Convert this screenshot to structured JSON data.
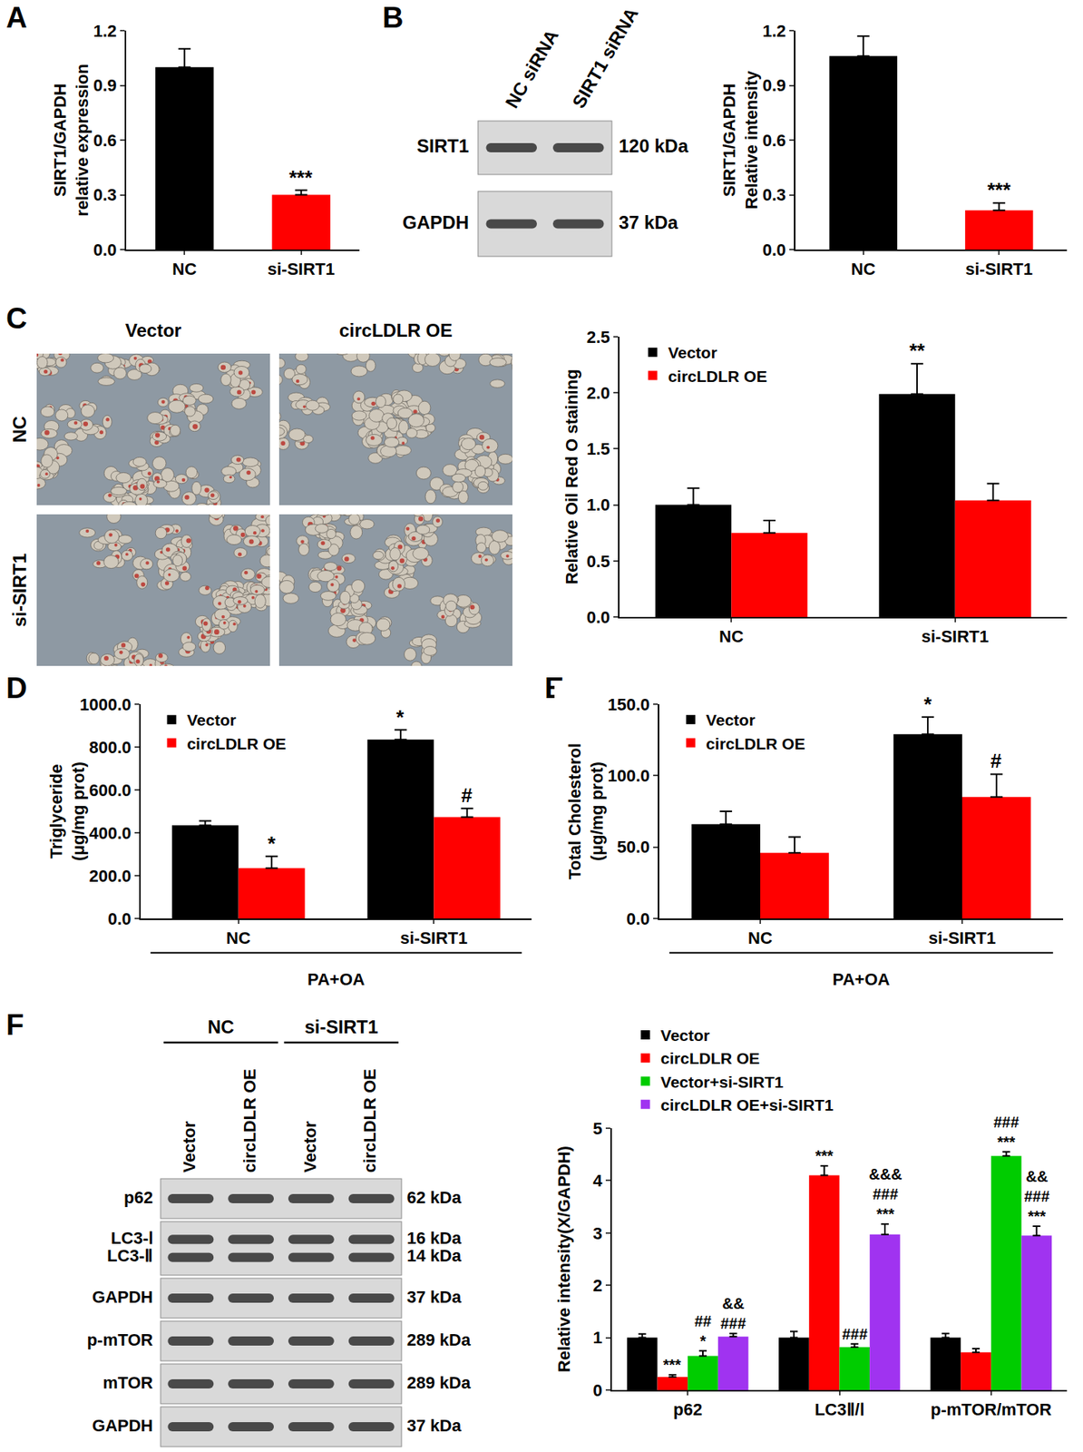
{
  "panel_letters": [
    "A",
    "B",
    "C",
    "D",
    "E",
    "F"
  ],
  "chart_data": [
    {
      "type": "bar",
      "categories": [
        "NC",
        "si-SIRT1"
      ],
      "values": [
        1.0,
        0.3
      ],
      "errors": [
        0.1,
        0.025
      ],
      "colors": [
        "#000000",
        "#ff0000"
      ],
      "ylabel": "SIRT1/GAPDH\nrelative expression",
      "ylim": [
        0,
        1.2
      ],
      "yticks": [
        {
          "value": 0,
          "label": "0.0"
        },
        0.3,
        0.6,
        0.9,
        1.2
      ],
      "grid": false,
      "annotations": [
        {
          "category": "si-SIRT1",
          "text": "***"
        }
      ]
    },
    {
      "type": "bar",
      "categories": [
        "NC",
        "si-SIRT1"
      ],
      "values": [
        1.06,
        0.215
      ],
      "errors": [
        0.11,
        0.04
      ],
      "colors": [
        "#000000",
        "#ff0000"
      ],
      "ylabel": "SIRT1/GAPDH\nRelative intensity",
      "ylim": [
        0,
        1.2
      ],
      "yticks": [
        {
          "value": 0,
          "label": "0.0"
        },
        0.3,
        0.6,
        0.9,
        1.2
      ],
      "grid": false,
      "annotations": [
        {
          "category": "si-SIRT1",
          "text": "***"
        }
      ]
    },
    {
      "type": "bar",
      "categories": [
        "NC",
        "si-SIRT1"
      ],
      "series": [
        {
          "name": "Vector",
          "color": "#000000",
          "values": [
            1.0,
            1.99
          ],
          "errors": [
            0.15,
            0.27
          ]
        },
        {
          "name": "circLDLR OE",
          "color": "#ff0000",
          "values": [
            0.75,
            1.04
          ],
          "errors": [
            0.11,
            0.15
          ]
        }
      ],
      "ylabel": "Relative Oil Red O staining",
      "ylim": [
        0,
        2.5
      ],
      "yticks": [
        {
          "value": 0,
          "label": "0.0"
        },
        0.5,
        {
          "value": 1,
          "label": "1.0"
        },
        1.5,
        {
          "value": 2,
          "label": "2.0"
        },
        2.5
      ],
      "grid": false,
      "legend": "top left",
      "annotations": [
        {
          "category": "si-SIRT1",
          "series": "Vector",
          "text": "**"
        }
      ]
    },
    {
      "type": "bar",
      "categories": [
        "NC",
        "si-SIRT1"
      ],
      "series": [
        {
          "name": "Vector",
          "color": "#000000",
          "values": [
            435,
            835
          ],
          "errors": [
            20,
            45
          ]
        },
        {
          "name": "circLDLR OE",
          "color": "#ff0000",
          "values": [
            235,
            473
          ],
          "errors": [
            55,
            40
          ]
        }
      ],
      "ylabel": "Triglyceride\n(μg/mg prot)",
      "xlabel": "PA+OA",
      "ylim": [
        0,
        1000
      ],
      "yticks": [
        {
          "value": 0,
          "label": "0.0"
        },
        {
          "value": 200,
          "label": "200.0"
        },
        {
          "value": 400,
          "label": "400.0"
        },
        {
          "value": 600,
          "label": "600.0"
        },
        {
          "value": 800,
          "label": "800.0"
        },
        {
          "value": 1000,
          "label": "1000.0"
        }
      ],
      "grid": false,
      "legend": "top left",
      "annotations": [
        {
          "category": "NC",
          "series": "circLDLR OE",
          "text": "*"
        },
        {
          "category": "si-SIRT1",
          "series": "Vector",
          "text": "*"
        },
        {
          "category": "si-SIRT1",
          "series": "circLDLR OE",
          "text": "#"
        }
      ]
    },
    {
      "type": "bar",
      "categories": [
        "NC",
        "si-SIRT1"
      ],
      "series": [
        {
          "name": "Vector",
          "color": "#000000",
          "values": [
            66,
            129
          ],
          "errors": [
            9,
            12
          ]
        },
        {
          "name": "circLDLR OE",
          "color": "#ff0000",
          "values": [
            46,
            85
          ],
          "errors": [
            11,
            16
          ]
        }
      ],
      "ylabel": "Total Cholesterol\n(μg/mg prot)",
      "xlabel": "PA+OA",
      "ylim": [
        0,
        150
      ],
      "yticks": [
        {
          "value": 0,
          "label": "0.0"
        },
        {
          "value": 50,
          "label": "50.0"
        },
        {
          "value": 100,
          "label": "100.0"
        },
        {
          "value": 150,
          "label": "150.0"
        }
      ],
      "grid": false,
      "legend": "top left",
      "annotations": [
        {
          "category": "si-SIRT1",
          "series": "Vector",
          "text": "*"
        },
        {
          "category": "si-SIRT1",
          "series": "circLDLR OE",
          "text": "#"
        }
      ]
    },
    {
      "type": "bar",
      "categories": [
        "p62",
        "LC3Ⅱ/Ⅰ",
        "p-mTOR/mTOR"
      ],
      "series": [
        {
          "name": "Vector",
          "color": "#000000",
          "values": [
            1.0,
            1.0,
            1.0
          ],
          "errors": [
            0.07,
            0.12,
            0.08
          ]
        },
        {
          "name": "circLDLR OE",
          "color": "#ff0000",
          "values": [
            0.25,
            4.1,
            0.72
          ],
          "errors": [
            0.04,
            0.18,
            0.07
          ]
        },
        {
          "name": "Vector+si-SIRT1",
          "color": "#00cc00",
          "values": [
            0.65,
            0.82,
            4.47
          ],
          "errors": [
            0.1,
            0.06,
            0.08
          ]
        },
        {
          "name": "circLDLR OE+si-SIRT1",
          "color": "#a033f0",
          "values": [
            1.02,
            2.97,
            2.95
          ],
          "errors": [
            0.06,
            0.2,
            0.18
          ]
        }
      ],
      "ylabel": "Relative intensity(X/GAPDH)",
      "ylim": [
        0,
        5
      ],
      "yticks": [
        0,
        1,
        2,
        3,
        4,
        5
      ],
      "grid": false,
      "legend": "outside top left",
      "annotations": [
        {
          "category": "p62",
          "series": "circLDLR OE",
          "text": "***"
        },
        {
          "category": "p62",
          "series": "Vector+si-SIRT1",
          "text": "##\n*"
        },
        {
          "category": "p62",
          "series": "circLDLR OE+si-SIRT1",
          "text": "&&\n###"
        },
        {
          "category": "LC3Ⅱ/Ⅰ",
          "series": "circLDLR OE",
          "text": "***"
        },
        {
          "category": "LC3Ⅱ/Ⅰ",
          "series": "Vector+si-SIRT1",
          "text": "###"
        },
        {
          "category": "LC3Ⅱ/Ⅰ",
          "series": "circLDLR OE+si-SIRT1",
          "text": "&&&\n###\n***"
        },
        {
          "category": "p-mTOR/mTOR",
          "series": "Vector+si-SIRT1",
          "text": "###\n***"
        },
        {
          "category": "p-mTOR/mTOR",
          "series": "circLDLR OE+si-SIRT1",
          "text": "&&\n###\n***"
        }
      ]
    }
  ],
  "blots": [
    {
      "lanes": [
        "NC siRNA",
        "SIRT1 siRNA"
      ],
      "rows": [
        {
          "bands": [
            "SIRT1"
          ],
          "sizes": [
            "120 kDa"
          ]
        },
        {
          "bands": [
            "GAPDH"
          ],
          "sizes": [
            "37 kDa"
          ]
        }
      ]
    },
    {
      "groups": [
        {
          "label": "NC",
          "lanes": [
            "Vector",
            "circLDLR OE"
          ]
        },
        {
          "label": "si-SIRT1",
          "lanes": [
            "Vector",
            "circLDLR OE"
          ]
        }
      ],
      "rows": [
        {
          "bands": [
            "p62"
          ],
          "sizes": [
            "62 kDa"
          ]
        },
        {
          "bands": [
            "LC3-Ⅰ",
            "LC3-Ⅱ"
          ],
          "sizes": [
            "16 kDa",
            "14 kDa"
          ]
        },
        {
          "bands": [
            "GAPDH"
          ],
          "sizes": [
            "37 kDa"
          ]
        },
        {
          "bands": [
            "p-mTOR"
          ],
          "sizes": [
            "289 kDa"
          ]
        },
        {
          "bands": [
            "mTOR"
          ],
          "sizes": [
            "289 kDa"
          ]
        },
        {
          "bands": [
            "GAPDH"
          ],
          "sizes": [
            "37 kDa"
          ]
        }
      ]
    }
  ],
  "images": {
    "columns": [
      "Vector",
      "circLDLR OE"
    ],
    "rows": [
      "NC",
      "si-SIRT1"
    ]
  }
}
